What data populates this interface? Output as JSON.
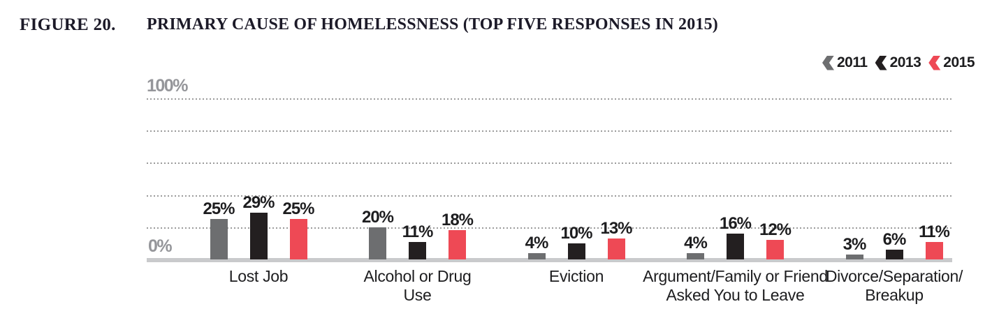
{
  "figure": {
    "label": "FIGURE 20.",
    "title": "PRIMARY CAUSE OF HOMELESSNESS (TOP FIVE RESPONSES IN 2015)"
  },
  "legend": {
    "items": [
      {
        "label": "2011",
        "color": "#6d6e70",
        "icon": "chevron-left-icon"
      },
      {
        "label": "2013",
        "color": "#231f20",
        "icon": "chevron-left-icon"
      },
      {
        "label": "2015",
        "color": "#ee4955",
        "icon": "chevron-left-icon"
      }
    ]
  },
  "axis": {
    "top_label": "100%",
    "bottom_label": "0%"
  },
  "chart_data": {
    "type": "bar",
    "title": "PRIMARY CAUSE OF HOMELESSNESS (TOP FIVE RESPONSES IN 2015)",
    "categories": [
      "Lost Job",
      "Alcohol or Drug Use",
      "Eviction",
      "Argument/Family or Friend Asked You to Leave",
      "Divorce/Separation/Breakup"
    ],
    "category_lines": [
      [
        "Lost Job"
      ],
      [
        "Alcohol or Drug",
        "Use"
      ],
      [
        "Eviction"
      ],
      [
        "Argument/Family or Friend",
        "Asked You to Leave"
      ],
      [
        "Divorce/Separation/",
        "Breakup"
      ]
    ],
    "series": [
      {
        "name": "2011",
        "color": "#6d6e70",
        "values": [
          25,
          20,
          4,
          4,
          3
        ]
      },
      {
        "name": "2013",
        "color": "#231f20",
        "values": [
          29,
          11,
          10,
          16,
          6
        ]
      },
      {
        "name": "2015",
        "color": "#ee4955",
        "values": [
          25,
          18,
          13,
          12,
          11
        ]
      }
    ],
    "value_suffix": "%",
    "xlabel": "",
    "ylabel": "",
    "ylim": [
      0,
      100
    ],
    "gridlines_pct": [
      20,
      40,
      60,
      80,
      100
    ],
    "grid": "dotted-horizontal",
    "legend_position": "top-right"
  }
}
